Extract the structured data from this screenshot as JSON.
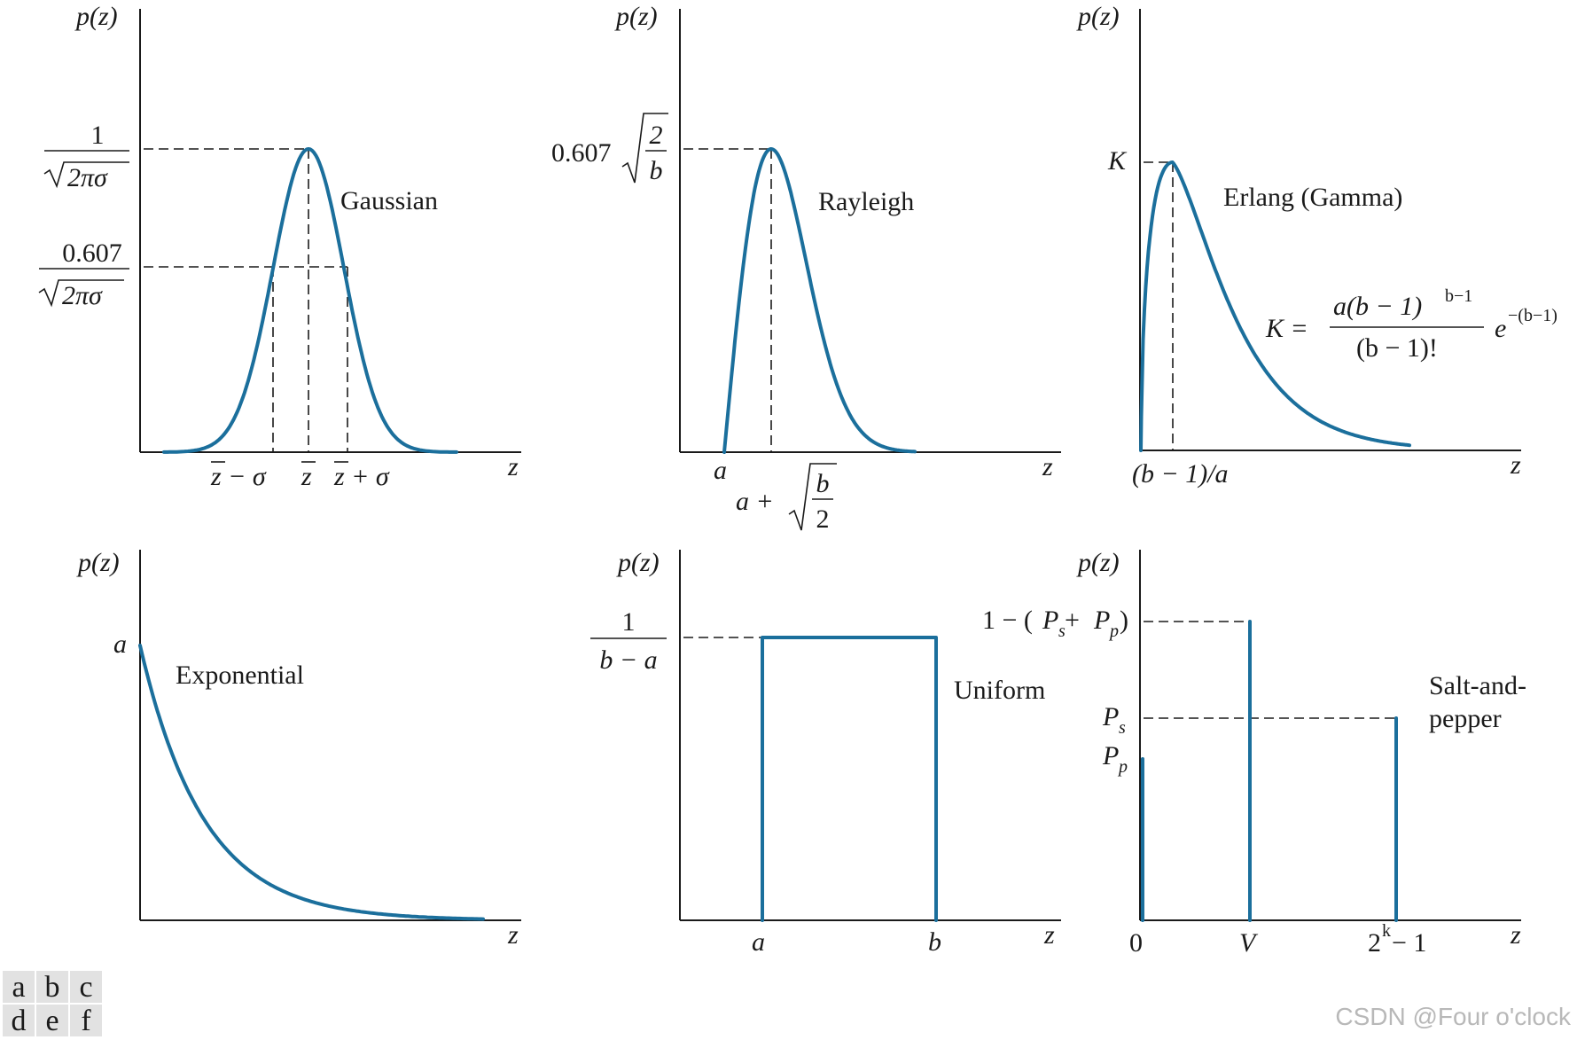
{
  "panels": {
    "gaussian": {
      "tag": "a",
      "ylabel": "p(z)",
      "xlabel": "z",
      "name": "Gaussian",
      "peak_num": "1",
      "peak_den": "2πσ",
      "half_num": "0.607",
      "half_den": "2πσ",
      "tick_minus": "z − σ",
      "tick_mean": "z",
      "tick_plus": "z + σ"
    },
    "rayleigh": {
      "tag": "b",
      "ylabel": "p(z)",
      "xlabel": "z",
      "name": "Rayleigh",
      "peak_coef": "0.607",
      "peak_rad_num": "2",
      "peak_rad_den": "b",
      "tick_a": "a",
      "tick_mode_pre": "a +",
      "tick_mode_num": "b",
      "tick_mode_den": "2"
    },
    "erlang": {
      "tag": "c",
      "ylabel": "p(z)",
      "xlabel": "z",
      "name": "Erlang (Gamma)",
      "peak_label": "K",
      "tick_mode": "(b − 1)/a",
      "formula_lhs": "K =",
      "formula_num": "a(b − 1)",
      "formula_num_exp": "b−1",
      "formula_den": "(b − 1)!",
      "formula_exp_base": "e",
      "formula_exp": "−(b−1)"
    },
    "exponential": {
      "tag": "d",
      "ylabel": "p(z)",
      "xlabel": "z",
      "name": "Exponential",
      "peak_label": "a"
    },
    "uniform": {
      "tag": "e",
      "ylabel": "p(z)",
      "xlabel": "z",
      "name": "Uniform",
      "height_num": "1",
      "height_den": "b − a",
      "tick_a": "a",
      "tick_b": "b"
    },
    "salt_pepper": {
      "tag": "f",
      "ylabel": "p(z)",
      "xlabel": "z",
      "name_line1": "Salt-and-",
      "name_line2": "pepper",
      "level_top_pre": "1 − (",
      "level_top_p1": "P",
      "level_top_s1": "s",
      "level_top_plus": " + ",
      "level_top_p2": "P",
      "level_top_s2": "p",
      "level_top_post": ")",
      "ps_main": "P",
      "ps_sub": "s",
      "pp_main": "P",
      "pp_sub": "p",
      "tick_zero": "0",
      "tick_v": "V",
      "tick_max_base": "2",
      "tick_max_exp": "k",
      "tick_max_post": " − 1"
    }
  },
  "panel_index": [
    "a",
    "b",
    "c",
    "d",
    "e",
    "f"
  ],
  "watermark": "CSDN @Four o'clock",
  "colors": {
    "curve": "#1b6f9c",
    "axis": "#1a1a1a"
  }
}
